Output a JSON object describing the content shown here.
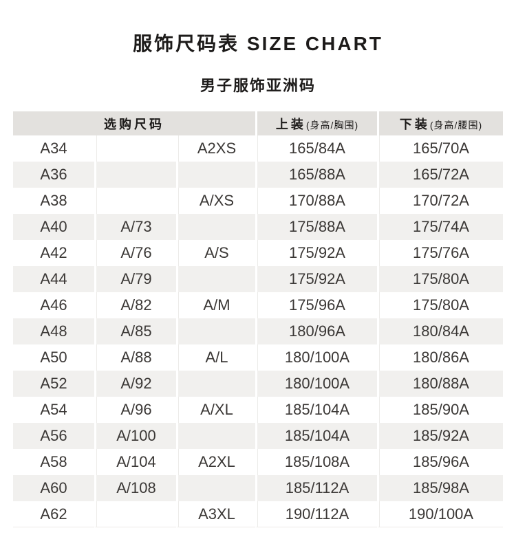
{
  "page": {
    "title": "服饰尺码表 SIZE CHART",
    "subtitle": "男子服饰亚洲码"
  },
  "table": {
    "header": {
      "group_label": "选购尺码",
      "tops_label": "上装",
      "tops_sub": "(身高/胸围)",
      "bottoms_label": "下装",
      "bottoms_sub": "(身高/腰围)"
    },
    "columns": [
      "size_code",
      "alt_code",
      "intl_size",
      "tops_height_chest",
      "bottoms_height_waist"
    ],
    "rows": [
      {
        "size": "A34",
        "alt": "",
        "intl": "A2XS",
        "top": "165/84A",
        "bottom": "165/70A"
      },
      {
        "size": "A36",
        "alt": "",
        "intl": "",
        "top": "165/88A",
        "bottom": "165/72A"
      },
      {
        "size": "A38",
        "alt": "",
        "intl": "A/XS",
        "top": "170/88A",
        "bottom": "170/72A"
      },
      {
        "size": "A40",
        "alt": "A/73",
        "intl": "",
        "top": "175/88A",
        "bottom": "175/74A"
      },
      {
        "size": "A42",
        "alt": "A/76",
        "intl": "A/S",
        "top": "175/92A",
        "bottom": "175/76A"
      },
      {
        "size": "A44",
        "alt": "A/79",
        "intl": "",
        "top": "175/92A",
        "bottom": "175/80A"
      },
      {
        "size": "A46",
        "alt": "A/82",
        "intl": "A/M",
        "top": "175/96A",
        "bottom": "175/80A"
      },
      {
        "size": "A48",
        "alt": "A/85",
        "intl": "",
        "top": "180/96A",
        "bottom": "180/84A"
      },
      {
        "size": "A50",
        "alt": "A/88",
        "intl": "A/L",
        "top": "180/100A",
        "bottom": "180/86A"
      },
      {
        "size": "A52",
        "alt": "A/92",
        "intl": "",
        "top": "180/100A",
        "bottom": "180/88A"
      },
      {
        "size": "A54",
        "alt": "A/96",
        "intl": "A/XL",
        "top": "185/104A",
        "bottom": "185/90A"
      },
      {
        "size": "A56",
        "alt": "A/100",
        "intl": "",
        "top": "185/104A",
        "bottom": "185/92A"
      },
      {
        "size": "A58",
        "alt": "A/104",
        "intl": "A2XL",
        "top": "185/108A",
        "bottom": "185/96A"
      },
      {
        "size": "A60",
        "alt": "A/108",
        "intl": "",
        "top": "185/112A",
        "bottom": "185/98A"
      },
      {
        "size": "A62",
        "alt": "",
        "intl": "A3XL",
        "top": "190/112A",
        "bottom": "190/100A"
      }
    ]
  },
  "colors": {
    "header_bg": "#e3e1de",
    "zebra_bg": "#f1f0ee",
    "text": "#3b3836",
    "header_text": "#1c1a19",
    "title_text": "#1d1b1a"
  }
}
